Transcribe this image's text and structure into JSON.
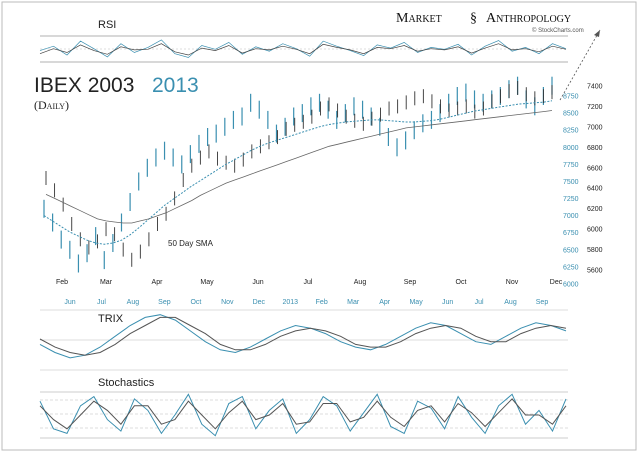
{
  "brand": {
    "market": "Market",
    "anthropology": "Anthropology",
    "source": "© StockCharts.com"
  },
  "colors": {
    "y2003": "#333333",
    "y2013": "#3a8fb0",
    "grid": "#999999",
    "accent": "#2a8ab0"
  },
  "chart_data": [
    {
      "type": "line",
      "panel": "rsi",
      "title": "RSI",
      "series": [
        {
          "color": "#3a8fb0",
          "values": [
            55,
            62,
            48,
            70,
            58,
            45,
            66,
            52,
            60,
            72,
            50,
            44,
            63,
            57,
            68,
            49,
            61,
            54,
            66,
            58,
            46,
            70,
            62,
            55,
            47,
            64,
            59,
            68,
            52,
            60,
            57,
            65,
            48,
            62,
            71,
            54,
            60,
            50,
            66,
            58
          ]
        },
        {
          "color": "#444444",
          "values": [
            50,
            58,
            52,
            64,
            55,
            49,
            61,
            56,
            57,
            66,
            53,
            48,
            59,
            55,
            63,
            51,
            58,
            56,
            62,
            57,
            50,
            65,
            60,
            56,
            50,
            60,
            58,
            63,
            54,
            58,
            56,
            61,
            51,
            59,
            66,
            56,
            58,
            53,
            62,
            57
          ]
        }
      ]
    },
    {
      "type": "candlestick",
      "panel": "price",
      "title_2003": "IBEX 2003",
      "title_2013": "2013",
      "subtitle": "(Daily)",
      "annotation": "50 Day SMA",
      "x_labels_2003": [
        "Feb",
        "Mar",
        "Apr",
        "May",
        "Jun",
        "Jul",
        "Aug",
        "Sep",
        "Oct",
        "Nov",
        "Dec"
      ],
      "x_labels_2013": [
        "Jun",
        "Jul",
        "Aug",
        "Sep",
        "Oct",
        "Nov",
        "Dec",
        "2013",
        "Feb",
        "Mar",
        "Apr",
        "May",
        "Jun",
        "Jul",
        "Aug",
        "Sep"
      ],
      "y_ticks_2013": [
        6000,
        6250,
        6500,
        6750,
        7000,
        7250,
        7500,
        7750,
        8000,
        8250,
        8500,
        8750
      ],
      "y_ticks_2003": [
        5600,
        5800,
        6000,
        6200,
        6400,
        6600,
        6800,
        7000,
        7200,
        7400
      ],
      "series_2003_close": [
        6500,
        6380,
        6240,
        6050,
        5900,
        5820,
        5880,
        6000,
        5950,
        5800,
        5700,
        5780,
        5900,
        6050,
        6150,
        6300,
        6480,
        6620,
        6700,
        6760,
        6690,
        6650,
        6620,
        6680,
        6760,
        6810,
        6850,
        6900,
        6980,
        7020,
        7050,
        7100,
        7180,
        7220,
        7160,
        7100,
        7060,
        7030,
        7080,
        7120,
        7180,
        7200,
        7240,
        7280,
        7300,
        7250,
        7200,
        7160,
        7180,
        7200,
        7150,
        7180,
        7250,
        7300,
        7350,
        7380,
        7320,
        7280,
        7300,
        7340
      ],
      "series_2013_close": [
        7100,
        6900,
        6650,
        6500,
        6300,
        6450,
        6700,
        6350,
        6600,
        6900,
        7200,
        7500,
        7700,
        7850,
        7950,
        7850,
        7750,
        7900,
        8050,
        8150,
        8200,
        8300,
        8400,
        8450,
        8650,
        8550,
        8400,
        8200,
        8300,
        8450,
        8500,
        8600,
        8650,
        8550,
        8400,
        8500,
        8600,
        8550,
        8450,
        8300,
        8150,
        8000,
        8100,
        8250,
        8350,
        8400,
        8500,
        8650,
        8750,
        8800,
        8700,
        8650,
        8700,
        8750,
        8850,
        8900,
        8700,
        8600,
        8750,
        8900
      ],
      "sma_2013": [
        7000,
        6920,
        6840,
        6760,
        6700,
        6640,
        6600,
        6580,
        6600,
        6640,
        6720,
        6820,
        6930,
        7040,
        7150,
        7240,
        7330,
        7420,
        7500,
        7580,
        7660,
        7740,
        7810,
        7880,
        7950,
        8010,
        8060,
        8100,
        8140,
        8180,
        8220,
        8260,
        8300,
        8330,
        8350,
        8370,
        8380,
        8390,
        8400,
        8400,
        8390,
        8380,
        8370,
        8370,
        8380,
        8390,
        8410,
        8440,
        8470,
        8500,
        8530,
        8550,
        8570,
        8590,
        8610,
        8630,
        8640,
        8650,
        8660,
        8680
      ],
      "sma_2003": [
        6340,
        6300,
        6260,
        6220,
        6180,
        6140,
        6100,
        6080,
        6070,
        6060,
        6060,
        6080,
        6100,
        6130,
        6160,
        6200,
        6240,
        6280,
        6330,
        6370,
        6410,
        6450,
        6480,
        6510,
        6540,
        6570,
        6600,
        6630,
        6660,
        6690,
        6720,
        6750,
        6780,
        6810,
        6830,
        6850,
        6870,
        6890,
        6910,
        6930,
        6950,
        6970,
        6990,
        7000,
        7010,
        7020,
        7030,
        7040,
        7050,
        7060,
        7070,
        7080,
        7090,
        7100,
        7110,
        7120,
        7130,
        7140,
        7150,
        7160
      ]
    },
    {
      "type": "line",
      "panel": "trix",
      "title": "TRIX",
      "series": [
        {
          "color": "#3a8fb0",
          "values": [
            -0.2,
            -0.5,
            -0.7,
            -0.6,
            -0.3,
            0.1,
            0.5,
            0.8,
            0.9,
            0.7,
            0.3,
            -0.1,
            -0.4,
            -0.5,
            -0.3,
            0.0,
            0.3,
            0.5,
            0.4,
            0.2,
            -0.1,
            -0.3,
            -0.4,
            -0.2,
            0.1,
            0.4,
            0.6,
            0.5,
            0.2,
            -0.1,
            -0.2,
            0.1,
            0.4,
            0.6,
            0.5,
            0.3
          ]
        },
        {
          "color": "#555555",
          "values": [
            0.0,
            -0.3,
            -0.5,
            -0.6,
            -0.5,
            -0.2,
            0.2,
            0.5,
            0.8,
            0.8,
            0.5,
            0.2,
            -0.2,
            -0.4,
            -0.4,
            -0.2,
            0.1,
            0.3,
            0.4,
            0.3,
            0.1,
            -0.2,
            -0.3,
            -0.3,
            -0.1,
            0.2,
            0.4,
            0.5,
            0.4,
            0.1,
            -0.1,
            -0.1,
            0.2,
            0.4,
            0.5,
            0.4
          ]
        }
      ]
    },
    {
      "type": "line",
      "panel": "stochastics",
      "title": "Stochastics",
      "series": [
        {
          "color": "#3a8fb0",
          "values": [
            80,
            20,
            10,
            70,
            90,
            40,
            15,
            85,
            60,
            10,
            50,
            95,
            30,
            5,
            75,
            90,
            20,
            60,
            85,
            10,
            40,
            90,
            70,
            15,
            55,
            95,
            25,
            10,
            80,
            65,
            20,
            90,
            45,
            10,
            70,
            95,
            30,
            60,
            15,
            85
          ]
        },
        {
          "color": "#555555",
          "values": [
            70,
            40,
            20,
            50,
            80,
            60,
            30,
            70,
            70,
            30,
            40,
            80,
            50,
            20,
            55,
            80,
            40,
            50,
            75,
            30,
            35,
            75,
            75,
            35,
            45,
            80,
            45,
            25,
            60,
            70,
            35,
            75,
            55,
            25,
            55,
            85,
            50,
            50,
            30,
            70
          ]
        }
      ]
    }
  ]
}
